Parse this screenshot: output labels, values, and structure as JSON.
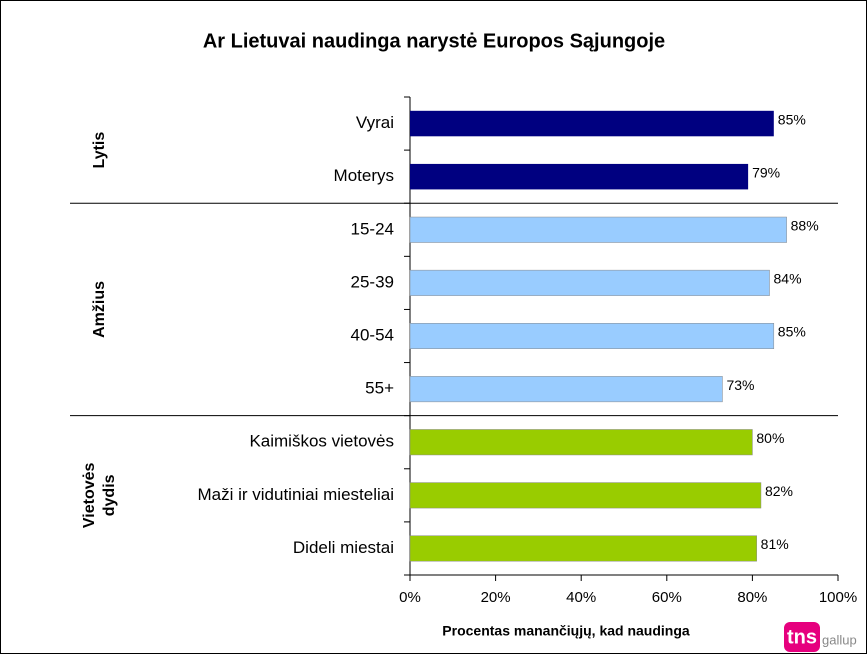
{
  "chart_data": {
    "type": "bar",
    "orientation": "horizontal",
    "title": "Ar Lietuvai naudinga narystė Europos Sąjungoje",
    "x_label": "Procentas manančiųjų, kad naudinga",
    "groups": [
      {
        "label_lines": [
          "Lytis"
        ],
        "color": "#000080",
        "categories": [
          "Vyrai",
          "Moterys"
        ],
        "values": [
          85,
          79
        ],
        "value_labels": [
          "85%",
          "79%"
        ]
      },
      {
        "label_lines": [
          "Amžius"
        ],
        "color": "#99ccff",
        "categories": [
          "15-24",
          "25-39",
          "40-54",
          "55+"
        ],
        "values": [
          88,
          84,
          85,
          73
        ],
        "value_labels": [
          "88%",
          "84%",
          "85%",
          "73%"
        ]
      },
      {
        "label_lines": [
          "Vietovės",
          "dydis"
        ],
        "color": "#99cc00",
        "categories": [
          "Kaimiškos vietovės",
          "Maži ir vidutiniai miesteliai",
          "Dideli miestai"
        ],
        "values": [
          80,
          82,
          81
        ],
        "value_labels": [
          "80%",
          "82%",
          "81%"
        ]
      }
    ],
    "xlim": [
      0,
      100
    ],
    "xticks": [
      {
        "value": 0,
        "label": "0%"
      },
      {
        "value": 20,
        "label": "20%"
      },
      {
        "value": 40,
        "label": "40%"
      },
      {
        "value": 60,
        "label": "60%"
      },
      {
        "value": 80,
        "label": "80%"
      },
      {
        "value": 100,
        "label": "100%"
      }
    ],
    "logo": {
      "brand": "tns",
      "sub": "gallup"
    }
  }
}
